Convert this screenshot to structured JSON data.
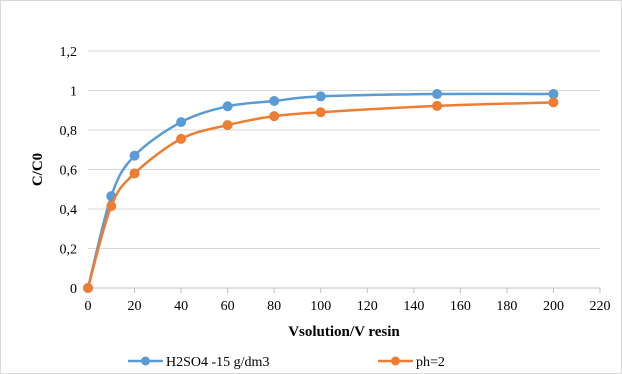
{
  "chart_data": {
    "type": "line",
    "title": "",
    "xlabel": "Vsolution/V resin",
    "ylabel": "C/C0",
    "xlim": [
      0,
      220
    ],
    "ylim": [
      0,
      1.2
    ],
    "x_ticks": [
      0,
      20,
      40,
      60,
      80,
      100,
      120,
      140,
      160,
      180,
      200,
      220
    ],
    "x_tick_labels": [
      "0",
      "20",
      "40",
      "60",
      "80",
      "100",
      "120",
      "140",
      "160",
      "180",
      "200",
      "220"
    ],
    "y_ticks": [
      0,
      0.2,
      0.4,
      0.6,
      0.8,
      1,
      1.2
    ],
    "y_tick_labels": [
      "0",
      "0,2",
      "0,4",
      "0,6",
      "0,8",
      "1",
      "1,2"
    ],
    "grid": "horizontal",
    "legend_position": "bottom",
    "x": [
      0,
      10,
      20,
      40,
      60,
      80,
      100,
      150,
      200
    ],
    "series": [
      {
        "name": "H2SO4 -15 g/dm3",
        "color": "#5b9bd5",
        "values": [
          0,
          0.465,
          0.67,
          0.84,
          0.92,
          0.947,
          0.97,
          0.982,
          0.982
        ]
      },
      {
        "name": "ph=2",
        "color": "#ed7d31",
        "values": [
          0,
          0.415,
          0.58,
          0.755,
          0.825,
          0.87,
          0.89,
          0.922,
          0.94
        ]
      }
    ]
  }
}
